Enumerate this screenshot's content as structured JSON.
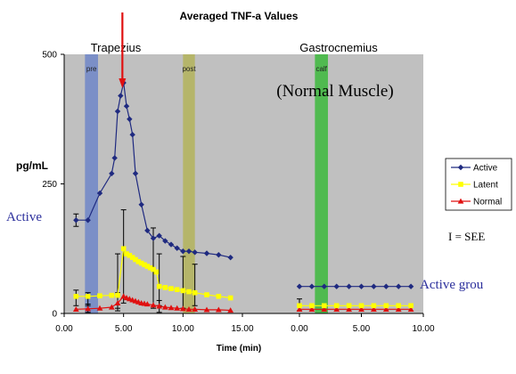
{
  "chart_data": {
    "type": "line",
    "title": "Averaged TNF-a Values",
    "ylabel": "pg/mL",
    "xlabel": "Time (min)",
    "ylim": [
      0,
      500
    ],
    "yticks": [
      0,
      250,
      500
    ],
    "grid": false,
    "plot_background": "#c0c0c0",
    "legend_placement": "right",
    "panels": [
      {
        "label": "Trapezius",
        "xlim": [
          0,
          15
        ],
        "xticks": [
          "0.00",
          "5.00",
          "10.00",
          "15.00"
        ],
        "bands": [
          {
            "label": "pre",
            "x_range": [
              1.75,
              2.85
            ],
            "color": "#6f86c8"
          },
          {
            "label": "post",
            "x_range": [
              10.0,
              11.0
            ],
            "color": "#b3b35a"
          }
        ],
        "arrow_at_x": 4.9,
        "annotation": "(Normal Muscle)"
      },
      {
        "label": "Gastrocnemius",
        "xlim": [
          0,
          10
        ],
        "xticks": [
          "0.00",
          "5.00",
          "10.00"
        ],
        "bands": [
          {
            "label": "calf",
            "x_range": [
              1.25,
              2.3
            ],
            "color": "#3cb83c"
          }
        ]
      }
    ],
    "series": [
      {
        "name": "Active",
        "color": "#1f2a80",
        "marker": "diamond",
        "panels": [
          {
            "x": [
              1.0,
              2.0,
              3.0,
              4.0,
              4.25,
              4.5,
              4.75,
              5.0,
              5.25,
              5.5,
              5.75,
              6.0,
              6.5,
              7.0,
              7.5,
              8.0,
              8.5,
              9.0,
              9.5,
              10.0,
              10.5,
              11.0,
              12.0,
              13.0,
              14.0
            ],
            "y": [
              180,
              180,
              232,
              270,
              300,
              390,
              420,
              445,
              400,
              375,
              345,
              270,
              210,
              160,
              145,
              150,
              140,
              133,
              126,
              120,
              120,
              118,
              116,
              113,
              108
            ]
          },
          {
            "x": [
              0.0,
              1.0,
              2.0,
              3.0,
              4.0,
              5.0,
              6.0,
              7.0,
              8.0,
              9.0
            ],
            "y": [
              52,
              52,
              52,
              52,
              52,
              52,
              52,
              52,
              52,
              52
            ]
          }
        ],
        "error_bars": [
          {
            "panel": 0,
            "x": 1.0,
            "low": 168,
            "high": 192
          }
        ]
      },
      {
        "name": "Latent",
        "color": "#ffff00",
        "marker": "square",
        "panels": [
          {
            "x": [
              1.0,
              2.0,
              3.0,
              4.0,
              4.5,
              5.0,
              5.25,
              5.5,
              5.75,
              6.0,
              6.25,
              6.5,
              6.75,
              7.0,
              7.25,
              7.5,
              7.75,
              8.0,
              8.5,
              9.0,
              9.5,
              10.0,
              10.5,
              11.0,
              12.0,
              13.0,
              14.0
            ],
            "y": [
              33,
              33,
              34,
              35,
              35,
              125,
              115,
              112,
              108,
              104,
              100,
              97,
              94,
              91,
              88,
              85,
              80,
              52,
              50,
              48,
              46,
              44,
              42,
              40,
              36,
              33,
              30
            ]
          },
          {
            "x": [
              0.0,
              1.0,
              2.0,
              3.0,
              4.0,
              5.0,
              6.0,
              7.0,
              8.0,
              9.0
            ],
            "y": [
              15,
              15,
              15,
              15,
              15,
              15,
              15,
              15,
              15,
              15
            ]
          }
        ],
        "error_bars": [
          {
            "panel": 0,
            "x": 1.0,
            "low": 15,
            "high": 45
          },
          {
            "panel": 0,
            "x": 2.0,
            "low": 15,
            "high": 40
          },
          {
            "panel": 0,
            "x": 4.5,
            "low": 10,
            "high": 115
          },
          {
            "panel": 0,
            "x": 5.0,
            "low": 20,
            "high": 200
          },
          {
            "panel": 0,
            "x": 7.5,
            "low": 10,
            "high": 165
          },
          {
            "panel": 0,
            "x": 8.0,
            "low": 15,
            "high": 115
          },
          {
            "panel": 0,
            "x": 10.0,
            "low": 10,
            "high": 110
          },
          {
            "panel": 0,
            "x": 11.0,
            "low": 15,
            "high": 95
          },
          {
            "panel": 1,
            "x": 0.0,
            "low": 5,
            "high": 28
          }
        ]
      },
      {
        "name": "Normal",
        "color": "#e01010",
        "marker": "triangle",
        "panels": [
          {
            "x": [
              1.0,
              2.0,
              3.0,
              4.0,
              4.5,
              5.0,
              5.25,
              5.5,
              5.75,
              6.0,
              6.25,
              6.5,
              6.75,
              7.0,
              7.5,
              8.0,
              8.5,
              9.0,
              9.5,
              10.0,
              10.5,
              11.0,
              12.0,
              13.0,
              14.0
            ],
            "y": [
              8,
              9,
              10,
              12,
              20,
              33,
              30,
              28,
              26,
              24,
              22,
              20,
              19,
              18,
              16,
              14,
              12,
              11,
              10,
              9,
              8,
              8,
              7,
              7,
              6
            ]
          },
          {
            "x": [
              0.0,
              1.0,
              2.0,
              3.0,
              4.0,
              5.0,
              6.0,
              7.0,
              8.0,
              9.0
            ],
            "y": [
              8,
              8,
              8,
              8,
              8,
              8,
              8,
              8,
              8,
              8
            ]
          }
        ],
        "error_bars": [
          {
            "panel": 0,
            "x": 2.0,
            "low": 2,
            "high": 18
          },
          {
            "panel": 0,
            "x": 4.5,
            "low": 5,
            "high": 40
          },
          {
            "panel": 0,
            "x": 8.0,
            "low": 2,
            "high": 25
          }
        ]
      }
    ],
    "annotations": [
      "I = SEE",
      "Active",
      "Active grou"
    ]
  }
}
